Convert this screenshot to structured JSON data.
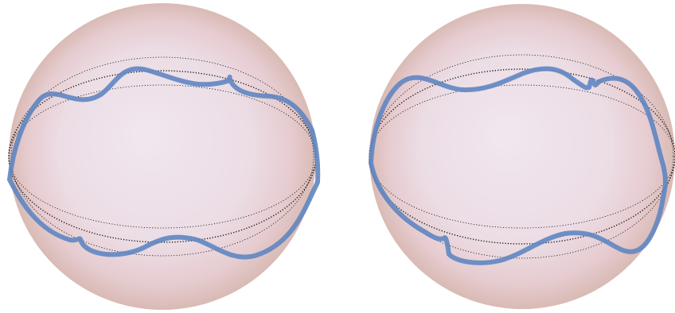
{
  "figure": {
    "panels": [
      {
        "id": "left",
        "sphere_colors": [
          "#f0e6ee",
          "#e9d6da",
          "#dfc2bd"
        ],
        "curve_color": "#5f86c2",
        "guide_color": "#111111"
      },
      {
        "id": "right",
        "sphere_colors": [
          "#f0e6ee",
          "#e9d6da",
          "#dfc2bd"
        ],
        "curve_color": "#5f86c2",
        "guide_color": "#111111"
      }
    ]
  }
}
